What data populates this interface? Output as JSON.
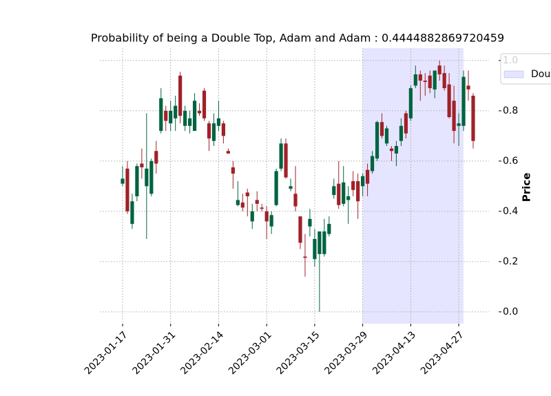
{
  "chart_data": {
    "type": "candlestick",
    "title": "Probability of being a Double Top, Adam and Adam : 0.4444882869720459",
    "ylabel": "Price",
    "categories": [
      "2023-01-17",
      null,
      null,
      null,
      null,
      null,
      null,
      null,
      null,
      null,
      "2023-01-31",
      null,
      null,
      null,
      null,
      null,
      null,
      null,
      null,
      null,
      "2023-02-14",
      null,
      null,
      null,
      null,
      null,
      null,
      null,
      null,
      null,
      "2023-03-01",
      null,
      null,
      null,
      null,
      null,
      null,
      null,
      null,
      null,
      "2023-03-15",
      null,
      null,
      null,
      null,
      null,
      null,
      null,
      null,
      null,
      "2023-03-29",
      null,
      null,
      null,
      null,
      null,
      null,
      null,
      null,
      null,
      "2023-04-13",
      null,
      null,
      null,
      null,
      null,
      null,
      null,
      null,
      null,
      "2023-04-27",
      null,
      null,
      null
    ],
    "open": [
      0.51,
      0.57,
      0.35,
      0.46,
      0.59,
      0.5,
      0.47,
      0.64,
      0.72,
      0.8,
      0.75,
      0.77,
      0.94,
      0.74,
      0.74,
      0.72,
      0.8,
      0.88,
      0.75,
      0.68,
      0.74,
      0.75,
      0.64,
      0.575,
      0.425,
      0.435,
      0.475,
      0.36,
      0.445,
      0.415,
      0.4,
      0.34,
      0.425,
      0.57,
      0.67,
      0.49,
      0.47,
      0.38,
      0.22,
      0.34,
      0.21,
      0.23,
      0.23,
      0.31,
      0.465,
      0.51,
      0.43,
      0.445,
      0.52,
      0.52,
      0.5,
      0.565,
      0.56,
      0.61,
      0.755,
      0.67,
      0.65,
      0.63,
      0.68,
      0.79,
      0.77,
      0.9,
      0.945,
      0.92,
      0.94,
      0.885,
      0.98,
      0.95,
      0.905,
      0.84,
      0.74,
      0.74,
      0.9,
      0.86
    ],
    "high": [
      0.58,
      0.6,
      0.47,
      0.59,
      0.65,
      0.79,
      0.61,
      0.68,
      0.89,
      0.82,
      0.84,
      0.86,
      0.955,
      0.82,
      0.8,
      0.87,
      0.83,
      0.89,
      0.76,
      0.79,
      0.84,
      0.76,
      0.65,
      0.6,
      0.52,
      0.47,
      0.49,
      0.43,
      0.48,
      0.43,
      0.42,
      0.4,
      0.57,
      0.69,
      0.69,
      0.53,
      0.58,
      0.38,
      0.31,
      0.41,
      0.33,
      0.32,
      0.37,
      0.38,
      0.53,
      0.6,
      0.58,
      0.5,
      0.56,
      0.55,
      0.55,
      0.59,
      0.64,
      0.76,
      0.79,
      0.74,
      0.66,
      0.68,
      0.77,
      0.8,
      0.9,
      0.98,
      0.96,
      0.95,
      0.96,
      0.96,
      1.0,
      0.98,
      0.95,
      0.9,
      0.79,
      0.96,
      0.96,
      0.87
    ],
    "low": [
      0.5,
      0.39,
      0.33,
      0.44,
      0.53,
      0.29,
      0.46,
      0.55,
      0.71,
      0.72,
      0.72,
      0.72,
      0.75,
      0.72,
      0.71,
      0.72,
      0.78,
      0.76,
      0.64,
      0.66,
      0.72,
      0.67,
      0.63,
      0.49,
      0.42,
      0.4,
      0.38,
      0.33,
      0.4,
      0.4,
      0.29,
      0.31,
      0.42,
      0.56,
      0.53,
      0.48,
      0.4,
      0.25,
      0.14,
      0.3,
      0.18,
      0.0,
      0.22,
      0.3,
      0.45,
      0.41,
      0.42,
      0.35,
      0.46,
      0.37,
      0.46,
      0.46,
      0.55,
      0.6,
      0.69,
      0.66,
      0.6,
      0.58,
      0.66,
      0.69,
      0.76,
      0.89,
      0.84,
      0.86,
      0.87,
      0.85,
      0.92,
      0.88,
      0.77,
      0.67,
      0.66,
      0.72,
      0.84,
      0.65
    ],
    "close": [
      0.53,
      0.4,
      0.44,
      0.58,
      0.575,
      0.57,
      0.6,
      0.59,
      0.85,
      0.76,
      0.8,
      0.82,
      0.78,
      0.8,
      0.77,
      0.84,
      0.79,
      0.77,
      0.69,
      0.75,
      0.77,
      0.7,
      0.63,
      0.55,
      0.445,
      0.415,
      0.46,
      0.4,
      0.43,
      0.41,
      0.36,
      0.385,
      0.56,
      0.67,
      0.535,
      0.5,
      0.42,
      0.275,
      0.215,
      0.37,
      0.29,
      0.32,
      0.32,
      0.35,
      0.5,
      0.425,
      0.515,
      0.46,
      0.485,
      0.44,
      0.54,
      0.51,
      0.62,
      0.755,
      0.7,
      0.73,
      0.64,
      0.66,
      0.74,
      0.71,
      0.89,
      0.945,
      0.92,
      0.915,
      0.89,
      0.96,
      0.945,
      0.89,
      0.775,
      0.72,
      0.75,
      0.935,
      0.885,
      0.68
    ],
    "up_color": "#006340",
    "down_color": "#a02128",
    "shaded_region": {
      "name": "Double Top",
      "color": "#0000ff",
      "opacity": 0.1,
      "xrange": [
        50,
        71
      ]
    },
    "xlim": [
      -4.73,
      76.3
    ],
    "ylim": [
      -0.047,
      1.049
    ],
    "yticks": [
      {
        "value": 0,
        "label": "0.0"
      },
      0.2,
      0.4,
      0.6,
      0.8,
      {
        "value": 1,
        "label": "1.0"
      }
    ],
    "grid": true,
    "legend": "upper right"
  }
}
